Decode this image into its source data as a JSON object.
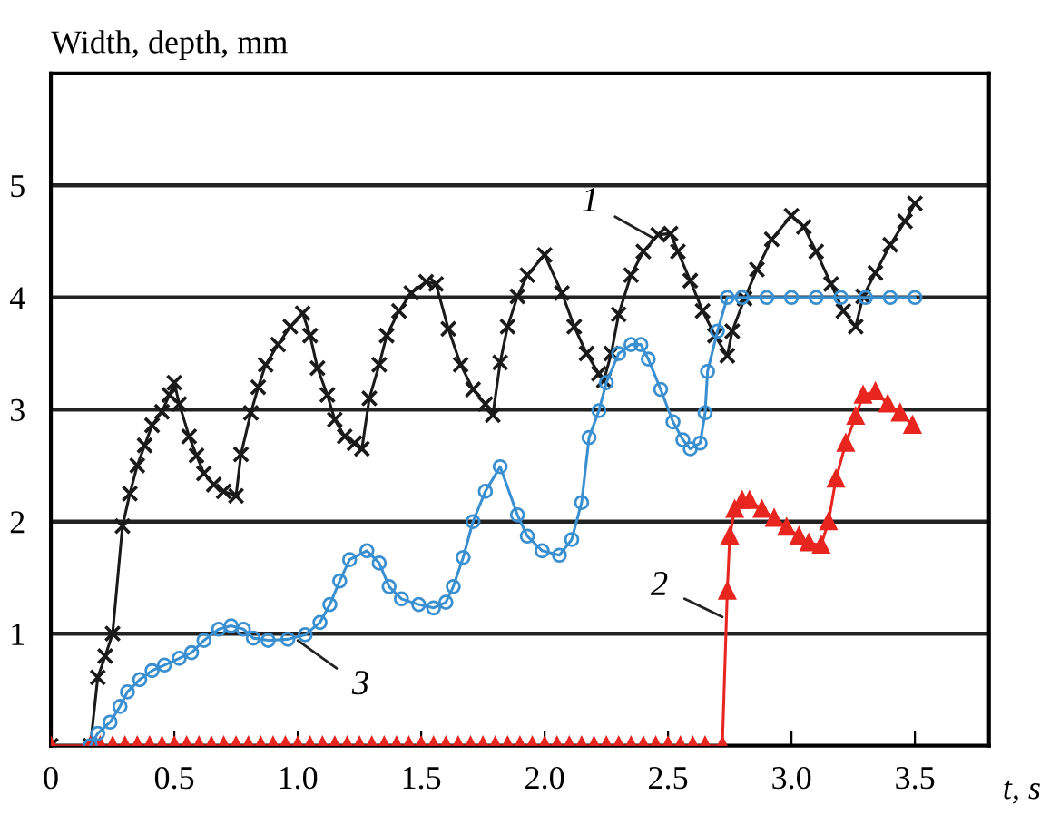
{
  "chart_data": {
    "type": "line",
    "xlabel": "t, s",
    "ylabel": "Width, depth, mm",
    "xlim": [
      0,
      3.8
    ],
    "ylim": [
      0,
      6
    ],
    "xticks": [
      0,
      {
        "value": 0.5,
        "label": "0.5"
      },
      {
        "value": 1,
        "label": "1.0"
      },
      {
        "value": 1.5,
        "label": "1.5"
      },
      {
        "value": 2,
        "label": "2.0"
      },
      {
        "value": 2.5,
        "label": "2.5"
      },
      {
        "value": 3,
        "label": "3.0"
      },
      {
        "value": 3.5,
        "label": "3.5"
      }
    ],
    "yticks": [
      1,
      2,
      3,
      4,
      5
    ],
    "grid": "y",
    "legend": false,
    "line_style": "solid",
    "series": [
      {
        "color": "#1a1a1a",
        "marker": "cross",
        "x": [
          0,
          0.16,
          0.19,
          0.22,
          0.25,
          0.29,
          0.32,
          0.35,
          0.38,
          0.41,
          0.45,
          0.48,
          0.5,
          0.52,
          0.56,
          0.59,
          0.62,
          0.66,
          0.7,
          0.75,
          0.77,
          0.81,
          0.84,
          0.87,
          0.92,
          0.97,
          1.02,
          1.05,
          1.08,
          1.12,
          1.15,
          1.19,
          1.23,
          1.26,
          1.29,
          1.33,
          1.36,
          1.41,
          1.46,
          1.52,
          1.56,
          1.61,
          1.66,
          1.71,
          1.76,
          1.79,
          1.82,
          1.85,
          1.89,
          1.93,
          2.0,
          2.07,
          2.12,
          2.17,
          2.22,
          2.24,
          2.27,
          2.3,
          2.35,
          2.4,
          2.46,
          2.51,
          2.54,
          2.59,
          2.64,
          2.69,
          2.74,
          2.76,
          2.81,
          2.86,
          2.92,
          3.0,
          3.05,
          3.1,
          3.16,
          3.21,
          3.26,
          3.29,
          3.34,
          3.4,
          3.46,
          3.5
        ],
        "values": [
          0,
          0,
          0.61,
          0.8,
          1.0,
          1.96,
          2.25,
          2.5,
          2.68,
          2.86,
          2.98,
          3.13,
          3.24,
          3.05,
          2.76,
          2.59,
          2.43,
          2.33,
          2.27,
          2.23,
          2.6,
          2.97,
          3.2,
          3.4,
          3.58,
          3.74,
          3.86,
          3.66,
          3.37,
          3.13,
          2.91,
          2.76,
          2.7,
          2.65,
          3.1,
          3.4,
          3.66,
          3.88,
          4.04,
          4.14,
          4.12,
          3.72,
          3.4,
          3.18,
          3.05,
          2.95,
          3.42,
          3.74,
          4.01,
          4.2,
          4.38,
          4.04,
          3.74,
          3.5,
          3.32,
          3.26,
          3.5,
          3.85,
          4.2,
          4.41,
          4.56,
          4.57,
          4.41,
          4.15,
          3.88,
          3.66,
          3.48,
          3.7,
          3.99,
          4.25,
          4.52,
          4.73,
          4.63,
          4.41,
          4.12,
          3.88,
          3.74,
          4.01,
          4.22,
          4.47,
          4.68,
          4.84
        ]
      },
      {
        "color": "#e8251f",
        "marker": "triangle",
        "x": [
          0,
          0.16,
          0.2,
          0.25,
          0.3,
          0.35,
          0.4,
          0.45,
          0.5,
          0.55,
          0.6,
          0.65,
          0.7,
          0.75,
          0.8,
          0.85,
          0.9,
          0.95,
          1.0,
          1.05,
          1.1,
          1.15,
          1.2,
          1.25,
          1.3,
          1.35,
          1.4,
          1.45,
          1.5,
          1.55,
          1.6,
          1.65,
          1.7,
          1.75,
          1.8,
          1.85,
          1.9,
          1.95,
          2.0,
          2.05,
          2.1,
          2.15,
          2.2,
          2.25,
          2.3,
          2.35,
          2.4,
          2.45,
          2.5,
          2.55,
          2.6,
          2.65,
          2.72,
          2.74,
          2.75,
          2.77,
          2.8,
          2.83,
          2.88,
          2.93,
          2.98,
          3.03,
          3.07,
          3.12,
          3.15,
          3.18,
          3.22,
          3.26,
          3.29,
          3.34,
          3.39,
          3.44,
          3.49
        ],
        "values": [
          0,
          0,
          0,
          0,
          0,
          0,
          0,
          0,
          0,
          0,
          0,
          0,
          0,
          0,
          0,
          0,
          0,
          0,
          0,
          0,
          0,
          0,
          0,
          0,
          0,
          0,
          0,
          0,
          0,
          0,
          0,
          0,
          0,
          0,
          0,
          0,
          0,
          0,
          0,
          0,
          0,
          0,
          0,
          0,
          0,
          0,
          0,
          0,
          0,
          0,
          0,
          0,
          0,
          1.38,
          1.87,
          2.11,
          2.19,
          2.19,
          2.11,
          2.03,
          1.95,
          1.87,
          1.81,
          1.79,
          2.0,
          2.38,
          2.7,
          2.94,
          3.13,
          3.16,
          3.05,
          2.97,
          2.86
        ]
      },
      {
        "color": "#3a8fd0",
        "marker": "circle",
        "x": [
          0.16,
          0.19,
          0.24,
          0.28,
          0.31,
          0.36,
          0.41,
          0.46,
          0.52,
          0.57,
          0.62,
          0.68,
          0.73,
          0.78,
          0.82,
          0.88,
          0.96,
          1.03,
          1.09,
          1.13,
          1.17,
          1.21,
          1.28,
          1.33,
          1.37,
          1.42,
          1.49,
          1.55,
          1.6,
          1.63,
          1.67,
          1.71,
          1.76,
          1.82,
          1.89,
          1.93,
          1.99,
          2.06,
          2.11,
          2.15,
          2.18,
          2.22,
          2.25,
          2.3,
          2.35,
          2.39,
          2.42,
          2.47,
          2.52,
          2.56,
          2.59,
          2.63,
          2.65,
          2.66,
          2.7,
          2.74,
          2.8,
          2.9,
          3.0,
          3.1,
          3.2,
          3.3,
          3.4,
          3.5
        ],
        "values": [
          0,
          0.11,
          0.21,
          0.35,
          0.48,
          0.59,
          0.67,
          0.72,
          0.78,
          0.83,
          0.94,
          1.04,
          1.07,
          1.04,
          0.96,
          0.94,
          0.95,
          0.99,
          1.1,
          1.26,
          1.47,
          1.66,
          1.74,
          1.63,
          1.42,
          1.31,
          1.26,
          1.23,
          1.28,
          1.42,
          1.68,
          2.0,
          2.27,
          2.49,
          2.06,
          1.87,
          1.74,
          1.7,
          1.84,
          2.17,
          2.75,
          2.99,
          3.24,
          3.5,
          3.58,
          3.58,
          3.45,
          3.18,
          2.89,
          2.73,
          2.65,
          2.7,
          2.97,
          3.34,
          3.7,
          4.0,
          4.0,
          4.0,
          4.0,
          4.0,
          4.0,
          4.0,
          4.0,
          4.0
        ]
      }
    ],
    "annotations": [
      {
        "text": "1",
        "x": 2.44,
        "y": 4.53
      },
      {
        "text": "2",
        "x": 2.72,
        "y": 1.15
      },
      {
        "text": "3",
        "x": 1.0,
        "y": 0.94
      }
    ]
  }
}
